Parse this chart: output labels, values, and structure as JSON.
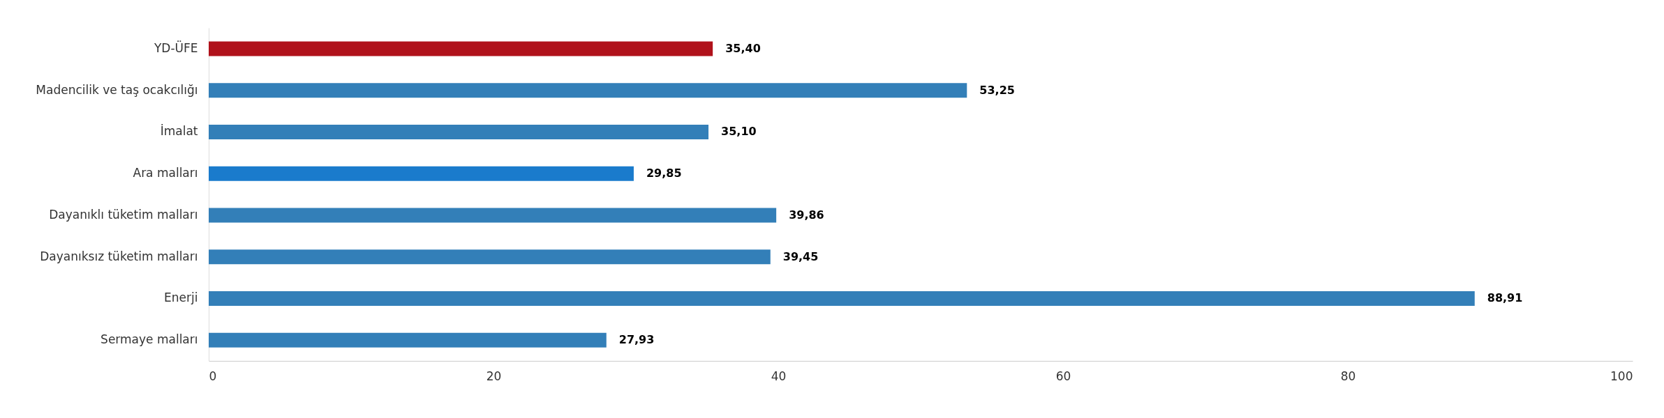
{
  "chart_data": {
    "type": "bar",
    "orientation": "horizontal",
    "categories": [
      "YD-ÜFE",
      "Madencilik ve taş ocakcılığı",
      "İmalat",
      "Ara malları",
      "Dayanıklı tüketim malları",
      "Dayanıksız tüketim malları",
      "Enerji",
      "Sermaye malları"
    ],
    "values": [
      35.4,
      53.25,
      35.1,
      29.85,
      39.86,
      39.45,
      88.91,
      27.93
    ],
    "colors": [
      "#b0121b",
      "#337fb8",
      "#337fb8",
      "#1a7bcc",
      "#337fb8",
      "#337fb8",
      "#337fb8",
      "#337fb8"
    ],
    "value_labels": [
      "35,40",
      "53,25",
      "35,10",
      "29,85",
      "39,86",
      "39,45",
      "88,91",
      "27,93"
    ],
    "xlim": [
      0,
      100
    ],
    "xticks": [
      0,
      20,
      40,
      60,
      80,
      100
    ],
    "grid": false,
    "legend": false
  }
}
